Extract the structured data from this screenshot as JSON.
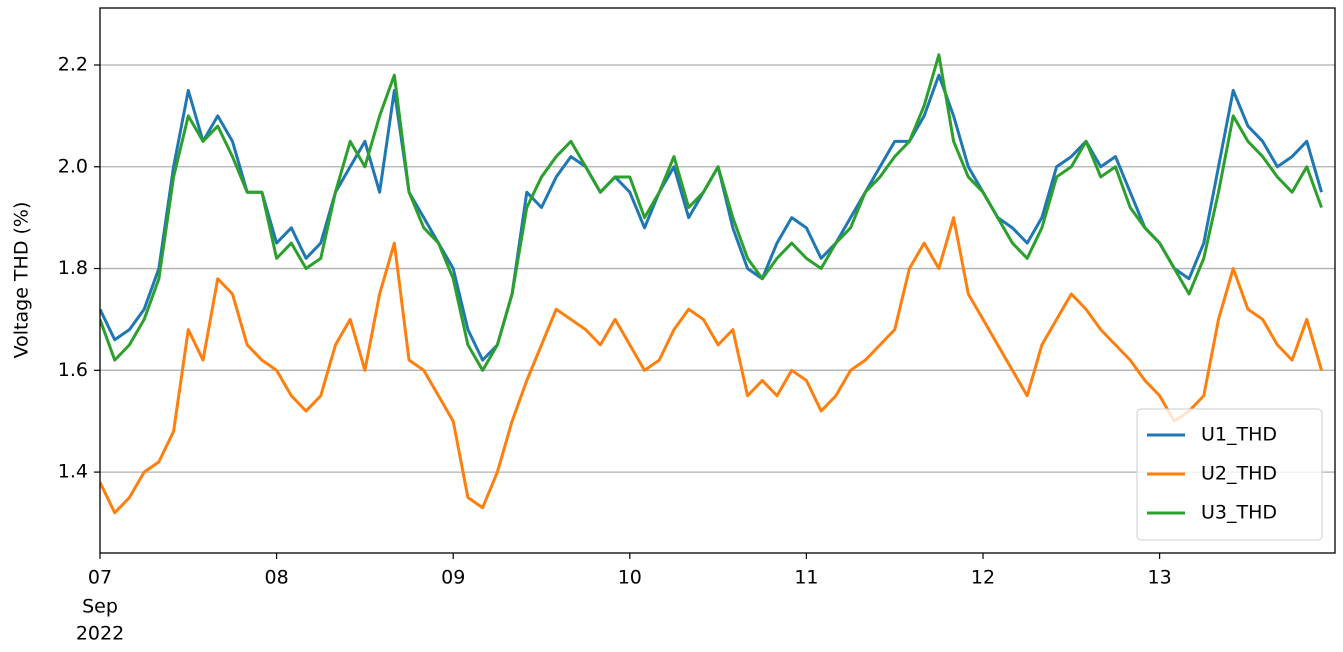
{
  "chart_data": {
    "type": "line",
    "ylabel": "Voltage THD (%)",
    "xlim": [
      "2022-09-07 00:00",
      "2022-09-13 23:50"
    ],
    "ylim": [
      1.241,
      2.312
    ],
    "yticks": [
      1.4,
      1.6,
      1.8,
      {
        "value": 2,
        "label": "2.0"
      },
      2.2
    ],
    "xticks": [
      {
        "value": "2022-09-07 00:00",
        "label": "07"
      },
      {
        "value": "2022-09-08 00:00",
        "label": "08"
      },
      {
        "value": "2022-09-09 00:00",
        "label": "09"
      },
      {
        "value": "2022-09-10 00:00",
        "label": "10"
      },
      {
        "value": "2022-09-11 00:00",
        "label": "11"
      },
      {
        "value": "2022-09-12 00:00",
        "label": "12"
      },
      {
        "value": "2022-09-13 00:00",
        "label": "13"
      }
    ],
    "xtick_sublabels": [
      "Sep",
      "2022"
    ],
    "grid": "y",
    "legend": "lower right",
    "x": [
      "2022-09-07 00:00",
      "2022-09-07 02:00",
      "2022-09-07 04:00",
      "2022-09-07 06:00",
      "2022-09-07 08:00",
      "2022-09-07 10:00",
      "2022-09-07 12:00",
      "2022-09-07 14:00",
      "2022-09-07 16:00",
      "2022-09-07 18:00",
      "2022-09-07 20:00",
      "2022-09-07 22:00",
      "2022-09-08 00:00",
      "2022-09-08 02:00",
      "2022-09-08 04:00",
      "2022-09-08 06:00",
      "2022-09-08 08:00",
      "2022-09-08 10:00",
      "2022-09-08 12:00",
      "2022-09-08 14:00",
      "2022-09-08 16:00",
      "2022-09-08 18:00",
      "2022-09-08 20:00",
      "2022-09-08 22:00",
      "2022-09-09 00:00",
      "2022-09-09 02:00",
      "2022-09-09 04:00",
      "2022-09-09 06:00",
      "2022-09-09 08:00",
      "2022-09-09 10:00",
      "2022-09-09 12:00",
      "2022-09-09 14:00",
      "2022-09-09 16:00",
      "2022-09-09 18:00",
      "2022-09-09 20:00",
      "2022-09-09 22:00",
      "2022-09-10 00:00",
      "2022-09-10 02:00",
      "2022-09-10 04:00",
      "2022-09-10 06:00",
      "2022-09-10 08:00",
      "2022-09-10 10:00",
      "2022-09-10 12:00",
      "2022-09-10 14:00",
      "2022-09-10 16:00",
      "2022-09-10 18:00",
      "2022-09-10 20:00",
      "2022-09-10 22:00",
      "2022-09-11 00:00",
      "2022-09-11 02:00",
      "2022-09-11 04:00",
      "2022-09-11 06:00",
      "2022-09-11 08:00",
      "2022-09-11 10:00",
      "2022-09-11 12:00",
      "2022-09-11 14:00",
      "2022-09-11 16:00",
      "2022-09-11 18:00",
      "2022-09-11 20:00",
      "2022-09-11 22:00",
      "2022-09-12 00:00",
      "2022-09-12 02:00",
      "2022-09-12 04:00",
      "2022-09-12 06:00",
      "2022-09-12 08:00",
      "2022-09-12 10:00",
      "2022-09-12 12:00",
      "2022-09-12 14:00",
      "2022-09-12 16:00",
      "2022-09-12 18:00",
      "2022-09-12 20:00",
      "2022-09-12 22:00",
      "2022-09-13 00:00",
      "2022-09-13 02:00",
      "2022-09-13 04:00",
      "2022-09-13 06:00",
      "2022-09-13 08:00",
      "2022-09-13 10:00",
      "2022-09-13 12:00",
      "2022-09-13 14:00",
      "2022-09-13 16:00",
      "2022-09-13 18:00",
      "2022-09-13 20:00",
      "2022-09-13 22:00"
    ],
    "series": [
      {
        "name": "U1_THD",
        "color": "#1f77b4",
        "values": [
          1.72,
          1.66,
          1.68,
          1.72,
          1.8,
          2.0,
          2.15,
          2.05,
          2.1,
          2.05,
          1.95,
          1.95,
          1.85,
          1.88,
          1.82,
          1.85,
          1.95,
          2.0,
          2.05,
          1.95,
          2.15,
          1.95,
          1.9,
          1.85,
          1.8,
          1.68,
          1.62,
          1.65,
          1.75,
          1.95,
          1.92,
          1.98,
          2.02,
          2.0,
          1.95,
          1.98,
          1.95,
          1.88,
          1.95,
          2.0,
          1.9,
          1.95,
          2.0,
          1.88,
          1.8,
          1.78,
          1.85,
          1.9,
          1.88,
          1.82,
          1.85,
          1.9,
          1.95,
          2.0,
          2.05,
          2.05,
          2.1,
          2.18,
          2.1,
          2.0,
          1.95,
          1.9,
          1.88,
          1.85,
          1.9,
          2.0,
          2.02,
          2.05,
          2.0,
          2.02,
          1.95,
          1.88,
          1.85,
          1.8,
          1.78,
          1.85,
          2.0,
          2.15,
          2.08,
          2.05,
          2.0,
          2.02,
          2.05,
          1.95
        ]
      },
      {
        "name": "U2_THD",
        "color": "#ff7f0e",
        "values": [
          1.38,
          1.32,
          1.35,
          1.4,
          1.42,
          1.48,
          1.68,
          1.62,
          1.78,
          1.75,
          1.65,
          1.62,
          1.6,
          1.55,
          1.52,
          1.55,
          1.65,
          1.7,
          1.6,
          1.75,
          1.85,
          1.62,
          1.6,
          1.55,
          1.5,
          1.35,
          1.33,
          1.4,
          1.5,
          1.58,
          1.65,
          1.72,
          1.7,
          1.68,
          1.65,
          1.7,
          1.65,
          1.6,
          1.62,
          1.68,
          1.72,
          1.7,
          1.65,
          1.68,
          1.55,
          1.58,
          1.55,
          1.6,
          1.58,
          1.52,
          1.55,
          1.6,
          1.62,
          1.65,
          1.68,
          1.8,
          1.85,
          1.8,
          1.9,
          1.75,
          1.7,
          1.65,
          1.6,
          1.55,
          1.65,
          1.7,
          1.75,
          1.72,
          1.68,
          1.65,
          1.62,
          1.58,
          1.55,
          1.5,
          1.52,
          1.55,
          1.7,
          1.8,
          1.72,
          1.7,
          1.65,
          1.62,
          1.7,
          1.6
        ]
      },
      {
        "name": "U3_THD",
        "color": "#2ca02c",
        "values": [
          1.7,
          1.62,
          1.65,
          1.7,
          1.78,
          1.98,
          2.1,
          2.05,
          2.08,
          2.02,
          1.95,
          1.95,
          1.82,
          1.85,
          1.8,
          1.82,
          1.95,
          2.05,
          2.0,
          2.1,
          2.18,
          1.95,
          1.88,
          1.85,
          1.78,
          1.65,
          1.6,
          1.65,
          1.75,
          1.92,
          1.98,
          2.02,
          2.05,
          2.0,
          1.95,
          1.98,
          1.98,
          1.9,
          1.95,
          2.02,
          1.92,
          1.95,
          2.0,
          1.9,
          1.82,
          1.78,
          1.82,
          1.85,
          1.82,
          1.8,
          1.85,
          1.88,
          1.95,
          1.98,
          2.02,
          2.05,
          2.12,
          2.22,
          2.05,
          1.98,
          1.95,
          1.9,
          1.85,
          1.82,
          1.88,
          1.98,
          2.0,
          2.05,
          1.98,
          2.0,
          1.92,
          1.88,
          1.85,
          1.8,
          1.75,
          1.82,
          1.95,
          2.1,
          2.05,
          2.02,
          1.98,
          1.95,
          2.0,
          1.92
        ]
      }
    ]
  }
}
